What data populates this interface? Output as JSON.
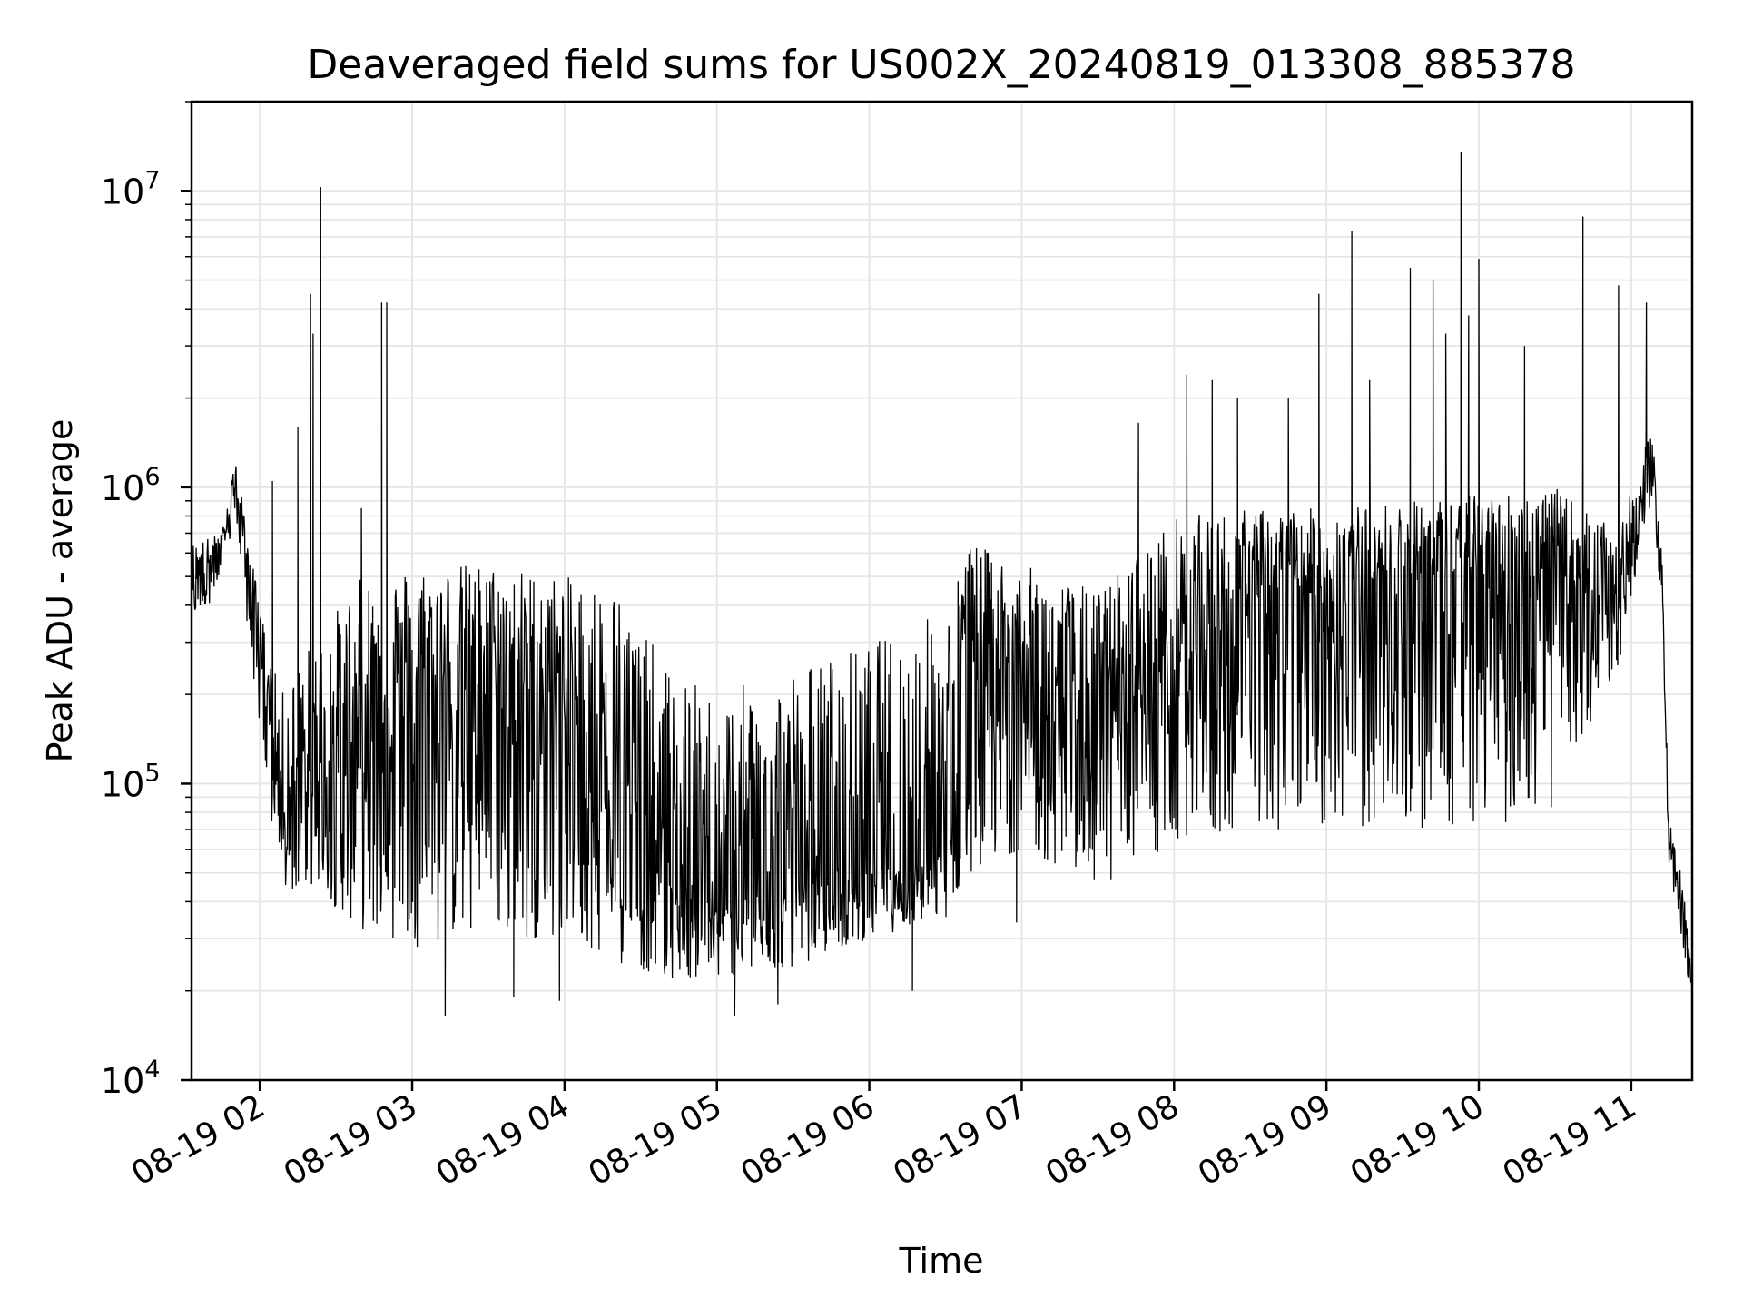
{
  "chart_data": {
    "type": "line",
    "title": "Deaveraged field sums for US002X_20240819_013308_885378",
    "xlabel": "Time",
    "ylabel": "Peak ADU - average",
    "xlim": [
      "2024-08-19 01:33:08",
      "2024-08-19 11:24:00"
    ],
    "ylim": [
      10000,
      20000000
    ],
    "yscale": "log",
    "grid": true,
    "line_color": "#000000",
    "grid_color": "#e6e6e6",
    "x_ticks": [
      {
        "value": "2024-08-19 02:00",
        "label": "08-19 02"
      },
      {
        "value": "2024-08-19 03:00",
        "label": "08-19 03"
      },
      {
        "value": "2024-08-19 04:00",
        "label": "08-19 04"
      },
      {
        "value": "2024-08-19 05:00",
        "label": "08-19 05"
      },
      {
        "value": "2024-08-19 06:00",
        "label": "08-19 06"
      },
      {
        "value": "2024-08-19 07:00",
        "label": "08-19 07"
      },
      {
        "value": "2024-08-19 08:00",
        "label": "08-19 08"
      },
      {
        "value": "2024-08-19 09:00",
        "label": "08-19 09"
      },
      {
        "value": "2024-08-19 10:00",
        "label": "08-19 10"
      },
      {
        "value": "2024-08-19 11:00",
        "label": "08-19 11"
      }
    ],
    "y_ticks": [
      {
        "value": 10000,
        "base": "10",
        "exp": "4"
      },
      {
        "value": 100000,
        "base": "10",
        "exp": "5"
      },
      {
        "value": 1000000,
        "base": "10",
        "exp": "6"
      },
      {
        "value": 10000000,
        "base": "10",
        "exp": "7"
      }
    ],
    "series": [
      {
        "style": "dense noisy trace, approximate envelope (low, typical, high) and notable spikes",
        "baseline": [
          {
            "x": "2024-08-19 01:33",
            "low": 350000,
            "mid": 500000,
            "high": 650000
          },
          {
            "x": "2024-08-19 01:45",
            "low": 450000,
            "mid": 600000,
            "high": 700000
          },
          {
            "x": "2024-08-19 01:50",
            "low": 800000,
            "mid": 1050000,
            "high": 1300000
          },
          {
            "x": "2024-08-19 02:00",
            "low": 150000,
            "mid": 300000,
            "high": 400000
          },
          {
            "x": "2024-08-19 02:08",
            "low": 40000,
            "mid": 90000,
            "high": 200000
          },
          {
            "x": "2024-08-19 02:20",
            "low": 45000,
            "mid": 100000,
            "high": 300000
          },
          {
            "x": "2024-08-19 02:40",
            "low": 32000,
            "mid": 150000,
            "high": 500000
          },
          {
            "x": "2024-08-19 03:00",
            "low": 28000,
            "mid": 200000,
            "high": 550000
          },
          {
            "x": "2024-08-19 03:30",
            "low": 30000,
            "mid": 200000,
            "high": 560000
          },
          {
            "x": "2024-08-19 04:00",
            "low": 30000,
            "mid": 200000,
            "high": 500000
          },
          {
            "x": "2024-08-19 04:20",
            "low": 25000,
            "mid": 100000,
            "high": 480000
          },
          {
            "x": "2024-08-19 04:40",
            "low": 22000,
            "mid": 45000,
            "high": 250000
          },
          {
            "x": "2024-08-19 05:00",
            "low": 22000,
            "mid": 40000,
            "high": 200000
          },
          {
            "x": "2024-08-19 05:30",
            "low": 24000,
            "mid": 45000,
            "high": 250000
          },
          {
            "x": "2024-08-19 06:00",
            "low": 30000,
            "mid": 50000,
            "high": 300000
          },
          {
            "x": "2024-08-19 06:30",
            "low": 35000,
            "mid": 60000,
            "high": 400000
          },
          {
            "x": "2024-08-19 06:40",
            "low": 50000,
            "mid": 400000,
            "high": 650000
          },
          {
            "x": "2024-08-19 07:00",
            "low": 60000,
            "mid": 200000,
            "high": 550000
          },
          {
            "x": "2024-08-19 07:30",
            "low": 45000,
            "mid": 150000,
            "high": 450000
          },
          {
            "x": "2024-08-19 08:00",
            "low": 60000,
            "mid": 250000,
            "high": 800000
          },
          {
            "x": "2024-08-19 08:30",
            "low": 70000,
            "mid": 400000,
            "high": 850000
          },
          {
            "x": "2024-08-19 09:00",
            "low": 70000,
            "mid": 450000,
            "high": 850000
          },
          {
            "x": "2024-08-19 09:30",
            "low": 70000,
            "mid": 500000,
            "high": 900000
          },
          {
            "x": "2024-08-19 10:00",
            "low": 70000,
            "mid": 500000,
            "high": 950000
          },
          {
            "x": "2024-08-19 10:30",
            "low": 80000,
            "mid": 500000,
            "high": 1000000
          },
          {
            "x": "2024-08-19 10:55",
            "low": 250000,
            "mid": 450000,
            "high": 700000
          },
          {
            "x": "2024-08-19 11:08",
            "low": 900000,
            "mid": 1200000,
            "high": 1600000
          },
          {
            "x": "2024-08-19 11:12",
            "low": 400000,
            "mid": 500000,
            "high": 700000
          },
          {
            "x": "2024-08-19 11:15",
            "low": 45000,
            "mid": 60000,
            "high": 75000
          },
          {
            "x": "2024-08-19 11:20",
            "low": 30000,
            "mid": 40000,
            "high": 50000
          },
          {
            "x": "2024-08-19 11:24",
            "low": 18000,
            "mid": 20000,
            "high": 22000
          }
        ],
        "spikes": [
          {
            "x": "2024-08-19 02:05",
            "y": 1050000
          },
          {
            "x": "2024-08-19 02:15",
            "y": 1600000
          },
          {
            "x": "2024-08-19 02:20",
            "y": 4500000
          },
          {
            "x": "2024-08-19 02:21",
            "y": 3300000
          },
          {
            "x": "2024-08-19 02:24",
            "y": 10300000
          },
          {
            "x": "2024-08-19 02:40",
            "y": 850000
          },
          {
            "x": "2024-08-19 02:48",
            "y": 4200000
          },
          {
            "x": "2024-08-19 02:50",
            "y": 4200000
          },
          {
            "x": "2024-08-19 07:46",
            "y": 1650000
          },
          {
            "x": "2024-08-19 08:05",
            "y": 2400000
          },
          {
            "x": "2024-08-19 08:15",
            "y": 2300000
          },
          {
            "x": "2024-08-19 08:25",
            "y": 2000000
          },
          {
            "x": "2024-08-19 08:45",
            "y": 2000000
          },
          {
            "x": "2024-08-19 08:57",
            "y": 4500000
          },
          {
            "x": "2024-08-19 09:10",
            "y": 7300000
          },
          {
            "x": "2024-08-19 09:17",
            "y": 2300000
          },
          {
            "x": "2024-08-19 09:33",
            "y": 5500000
          },
          {
            "x": "2024-08-19 09:42",
            "y": 5000000
          },
          {
            "x": "2024-08-19 09:47",
            "y": 3300000
          },
          {
            "x": "2024-08-19 09:53",
            "y": 13500000
          },
          {
            "x": "2024-08-19 09:56",
            "y": 3800000
          },
          {
            "x": "2024-08-19 10:00",
            "y": 5900000
          },
          {
            "x": "2024-08-19 10:18",
            "y": 3000000
          },
          {
            "x": "2024-08-19 10:41",
            "y": 8200000
          },
          {
            "x": "2024-08-19 10:55",
            "y": 4800000
          },
          {
            "x": "2024-08-19 11:06",
            "y": 4200000
          }
        ],
        "dips": [
          {
            "x": "2024-08-19 03:13",
            "y": 16500
          },
          {
            "x": "2024-08-19 03:40",
            "y": 19000
          },
          {
            "x": "2024-08-19 03:58",
            "y": 18500
          },
          {
            "x": "2024-08-19 05:07",
            "y": 16500
          },
          {
            "x": "2024-08-19 05:24",
            "y": 18000
          },
          {
            "x": "2024-08-19 06:17",
            "y": 20000
          },
          {
            "x": "2024-08-19 06:58",
            "y": 34000
          }
        ]
      }
    ]
  }
}
